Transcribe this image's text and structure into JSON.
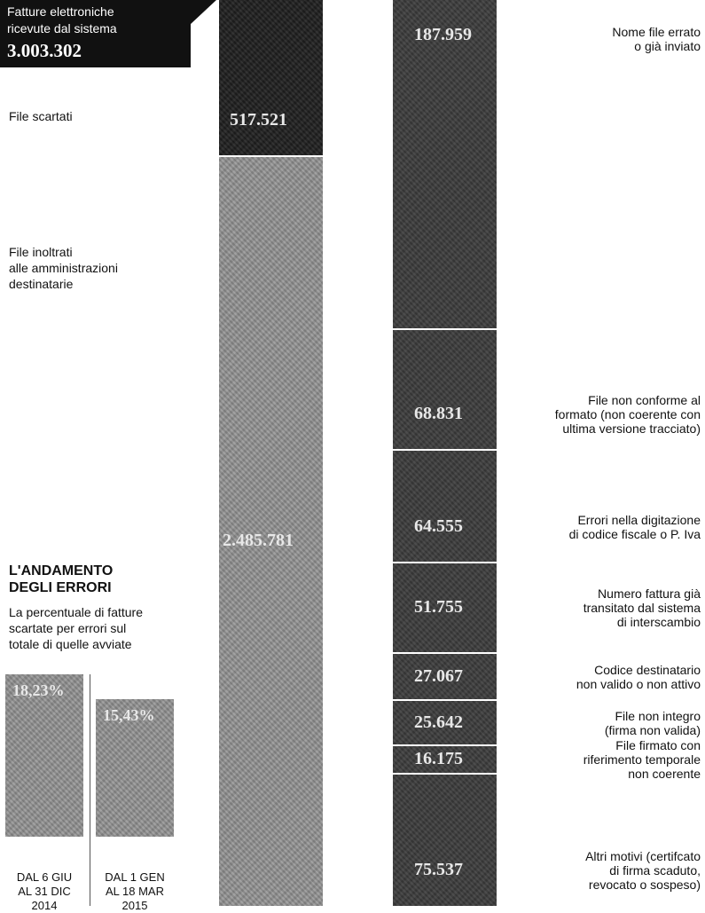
{
  "chart_data": [
    {
      "type": "bar",
      "stacked": true,
      "orientation": "vertical",
      "title": "Fatture elettroniche ricevute dal sistema",
      "total": "3.003.302",
      "total_value": 3003302,
      "categories": [
        "File scartati",
        "File inoltrati alle amministrazioni destinatarie"
      ],
      "values": [
        517521,
        2485781
      ],
      "value_labels": [
        "517.521",
        "2.485.781"
      ],
      "colors": [
        "#222222",
        "#8f8f8f"
      ]
    },
    {
      "type": "bar",
      "stacked": true,
      "orientation": "vertical",
      "title": "",
      "categories": [
        "Nome file errato o già inviato",
        "File non conforme al formato (non coerente con ultima versione tracciato)",
        "Errori nella digitazione di codice fiscale o P. Iva",
        "Numero fattura già transitato dal sistema di interscambio",
        "Codice destinatario non valido o non attivo",
        "File non integro (firma non valida)",
        "File firmato con riferimento temporale non coerente",
        "Altri motivi (certifcato di firma scaduto, revocato o sospeso)"
      ],
      "values": [
        187959,
        68831,
        64555,
        51755,
        27067,
        25642,
        16175,
        75537
      ],
      "value_labels": [
        "187.959",
        "68.831",
        "64.555",
        "51.755",
        "27.067",
        "25.642",
        "16.175",
        "75.537"
      ],
      "category_lines": [
        [
          "Nome file errato",
          "o già inviato"
        ],
        [
          "File non conforme al",
          "formato (non coerente con",
          "ultima versione tracciato)"
        ],
        [
          "Errori nella digitazione",
          "di codice fiscale o P. Iva"
        ],
        [
          "Numero fattura già",
          "transitato dal sistema",
          "di interscambio"
        ],
        [
          "Codice destinatario",
          "non valido o non attivo"
        ],
        [
          "File non integro",
          "(firma non valida)"
        ],
        [
          "File firmato con",
          "riferimento temporale",
          "non coerente"
        ],
        [
          "Altri motivi (certifcato",
          "di firma scaduto,",
          "revocato o sospeso)"
        ]
      ],
      "color": "#2a2a2a"
    },
    {
      "type": "bar",
      "title": "L'ANDAMENTO DEGLI ERRORI",
      "title_lines": [
        "L'ANDAMENTO",
        "DEGLI ERRORI"
      ],
      "subtitle": "La percentuale di fatture scartate per errori sul totale di quelle avviate",
      "subtitle_lines": [
        "La percentuale di fatture",
        "scartate per errori sul",
        "totale di quelle avviate"
      ],
      "categories": [
        "DAL 6 GIU AL 31 DIC 2014",
        "DAL 1 GEN AL 18 MAR 2015"
      ],
      "category_lines": [
        [
          "DAL 6 GIU",
          "AL 31 DIC",
          "2014"
        ],
        [
          "DAL 1 GEN",
          "AL 18 MAR",
          "2015"
        ]
      ],
      "values": [
        18.23,
        15.43
      ],
      "value_labels": [
        "18,23%",
        "15,43%"
      ],
      "unit": "%",
      "ylim": [
        0,
        18.23
      ],
      "color": "#8f8f8f"
    }
  ],
  "left_labels": {
    "header_line1": "Fatture elettroniche",
    "header_line2": "ricevute dal sistema",
    "header_total": "3.003.302",
    "scartati": "File scartati",
    "inoltrati_line1": "File inoltrati",
    "inoltrati_line2": "alle amministrazioni",
    "inoltrati_line3": "destinatarie"
  }
}
